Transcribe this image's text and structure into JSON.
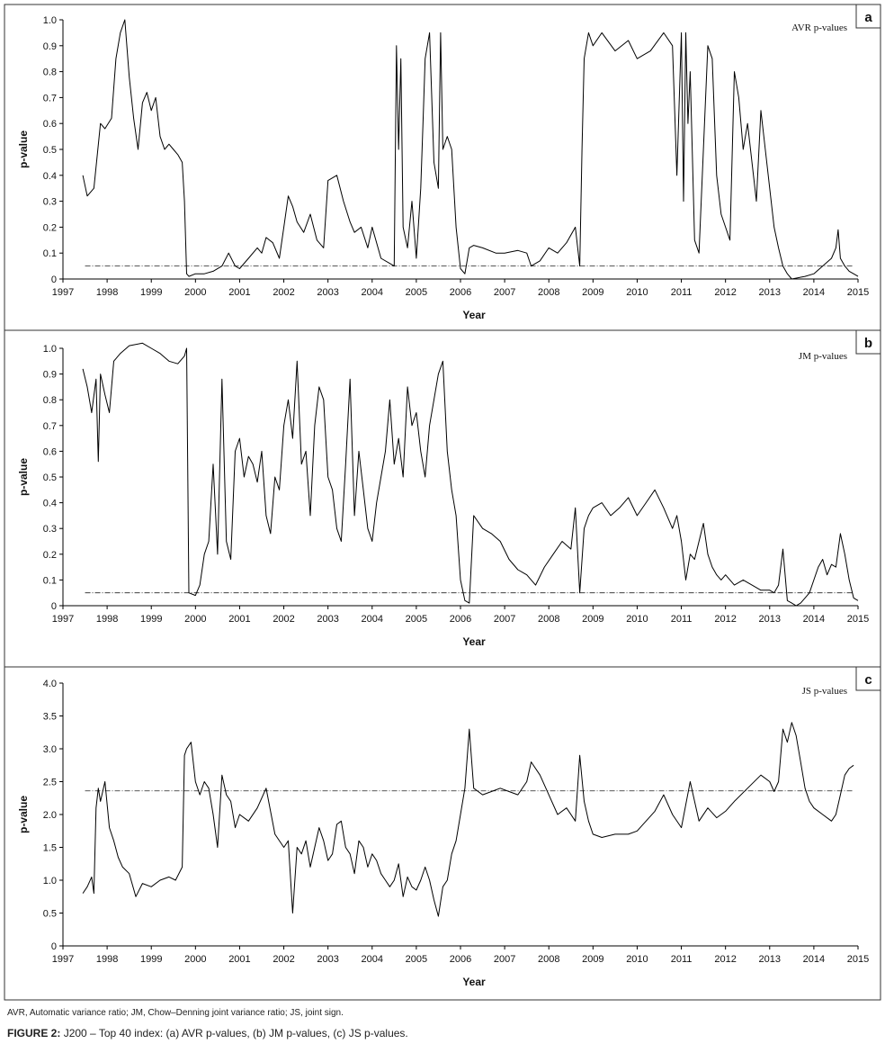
{
  "footnote": "AVR, Automatic variance ratio; JM, Chow–Denning joint variance ratio; JS, joint sign.",
  "caption": {
    "label": "FIGURE 2:",
    "text": "J200 – Top 40 index: (a) AVR p-values, (b) JM p-values, (c) JS p-values."
  },
  "chart_data": [
    {
      "type": "line",
      "panel_label": "a",
      "legend": "AVR p-values",
      "xlabel": "Year",
      "ylabel": "p-value",
      "xlim": [
        1997,
        2015
      ],
      "ylim": [
        0,
        1.0
      ],
      "xticks": [
        "1997",
        "1998",
        "1999",
        "2000",
        "2001",
        "2002",
        "2003",
        "2004",
        "2005",
        "2006",
        "2007",
        "2008",
        "2009",
        "2010",
        "2011",
        "2012",
        "2013",
        "2014",
        "2015"
      ],
      "yticks": [
        "0",
        "0.1",
        "0.2",
        "0.3",
        "0.4",
        "0.5",
        "0.6",
        "0.7",
        "0.8",
        "0.9",
        "1.0"
      ],
      "reference_line": 0.05,
      "series": [
        {
          "name": "AVR p-values",
          "x": [
            1997.45,
            1997.55,
            1997.7,
            1997.85,
            1997.95,
            1998.1,
            1998.2,
            1998.3,
            1998.4,
            1998.5,
            1998.6,
            1998.7,
            1998.8,
            1998.9,
            1999.0,
            1999.1,
            1999.2,
            1999.3,
            1999.4,
            1999.5,
            1999.6,
            1999.7,
            1999.75,
            1999.8,
            1999.85,
            2000.0,
            2000.2,
            2000.4,
            2000.6,
            2000.75,
            2000.9,
            2001.0,
            2001.2,
            2001.4,
            2001.5,
            2001.6,
            2001.75,
            2001.9,
            2002.0,
            2002.1,
            2002.2,
            2002.3,
            2002.45,
            2002.6,
            2002.75,
            2002.9,
            2003.0,
            2003.2,
            2003.35,
            2003.5,
            2003.6,
            2003.75,
            2003.9,
            2004.0,
            2004.2,
            2004.4,
            2004.5,
            2004.55,
            2004.6,
            2004.65,
            2004.7,
            2004.8,
            2004.9,
            2005.0,
            2005.1,
            2005.15,
            2005.2,
            2005.3,
            2005.4,
            2005.5,
            2005.55,
            2005.6,
            2005.7,
            2005.8,
            2005.9,
            2006.0,
            2006.1,
            2006.2,
            2006.3,
            2006.5,
            2006.8,
            2007.0,
            2007.3,
            2007.5,
            2007.6,
            2007.8,
            2008.0,
            2008.2,
            2008.4,
            2008.6,
            2008.7,
            2008.75,
            2008.8,
            2008.9,
            2009.0,
            2009.2,
            2009.5,
            2009.8,
            2010.0,
            2010.3,
            2010.6,
            2010.8,
            2010.9,
            2011.0,
            2011.05,
            2011.1,
            2011.15,
            2011.2,
            2011.3,
            2011.4,
            2011.5,
            2011.6,
            2011.7,
            2011.8,
            2011.9,
            2012.0,
            2012.1,
            2012.2,
            2012.3,
            2012.4,
            2012.5,
            2012.6,
            2012.7,
            2012.8,
            2012.9,
            2013.0,
            2013.1,
            2013.2,
            2013.3,
            2013.4,
            2013.5,
            2013.8,
            2014.0,
            2014.2,
            2014.4,
            2014.5,
            2014.55,
            2014.6,
            2014.7,
            2014.8,
            2014.9,
            2015.0
          ],
          "y": [
            0.4,
            0.32,
            0.35,
            0.6,
            0.58,
            0.62,
            0.85,
            0.95,
            1.0,
            0.78,
            0.62,
            0.5,
            0.68,
            0.72,
            0.65,
            0.7,
            0.55,
            0.5,
            0.52,
            0.5,
            0.48,
            0.45,
            0.3,
            0.02,
            0.01,
            0.02,
            0.02,
            0.03,
            0.05,
            0.1,
            0.05,
            0.04,
            0.08,
            0.12,
            0.1,
            0.16,
            0.14,
            0.08,
            0.2,
            0.32,
            0.28,
            0.22,
            0.18,
            0.25,
            0.15,
            0.12,
            0.38,
            0.4,
            0.3,
            0.22,
            0.18,
            0.2,
            0.12,
            0.2,
            0.08,
            0.06,
            0.05,
            0.9,
            0.5,
            0.85,
            0.2,
            0.12,
            0.3,
            0.08,
            0.35,
            0.6,
            0.85,
            0.95,
            0.45,
            0.35,
            0.95,
            0.5,
            0.55,
            0.5,
            0.2,
            0.04,
            0.02,
            0.12,
            0.13,
            0.12,
            0.1,
            0.1,
            0.11,
            0.1,
            0.05,
            0.07,
            0.12,
            0.1,
            0.14,
            0.2,
            0.05,
            0.5,
            0.85,
            0.95,
            0.9,
            0.95,
            0.88,
            0.92,
            0.85,
            0.88,
            0.95,
            0.9,
            0.4,
            0.95,
            0.3,
            0.95,
            0.6,
            0.8,
            0.15,
            0.1,
            0.5,
            0.9,
            0.85,
            0.4,
            0.25,
            0.2,
            0.15,
            0.8,
            0.7,
            0.5,
            0.6,
            0.45,
            0.3,
            0.65,
            0.5,
            0.35,
            0.2,
            0.12,
            0.05,
            0.02,
            0.0,
            0.01,
            0.02,
            0.05,
            0.08,
            0.12,
            0.19,
            0.08,
            0.05,
            0.03,
            0.02,
            0.01
          ]
        }
      ]
    },
    {
      "type": "line",
      "panel_label": "b",
      "legend": "JM p-values",
      "xlabel": "Year",
      "ylabel": "p-value",
      "xlim": [
        1997,
        2015
      ],
      "ylim": [
        0,
        1.0
      ],
      "xticks": [
        "1997",
        "1998",
        "1999",
        "2000",
        "2001",
        "2002",
        "2003",
        "2004",
        "2005",
        "2006",
        "2007",
        "2008",
        "2009",
        "2010",
        "2011",
        "2012",
        "2013",
        "2014",
        "2015"
      ],
      "yticks": [
        "0",
        "0.1",
        "0.2",
        "0.3",
        "0.4",
        "0.5",
        "0.6",
        "0.7",
        "0.8",
        "0.9",
        "1.0"
      ],
      "reference_line": 0.05,
      "series": [
        {
          "name": "JM p-values",
          "x": [
            1997.45,
            1997.55,
            1997.65,
            1997.75,
            1997.8,
            1997.85,
            1997.95,
            1998.05,
            1998.15,
            1998.3,
            1998.5,
            1998.8,
            1999.0,
            1999.2,
            1999.4,
            1999.6,
            1999.75,
            1999.8,
            1999.85,
            2000.0,
            2000.1,
            2000.2,
            2000.3,
            2000.4,
            2000.5,
            2000.6,
            2000.7,
            2000.8,
            2000.9,
            2001.0,
            2001.1,
            2001.2,
            2001.3,
            2001.4,
            2001.5,
            2001.6,
            2001.7,
            2001.8,
            2001.9,
            2002.0,
            2002.1,
            2002.2,
            2002.3,
            2002.4,
            2002.5,
            2002.6,
            2002.7,
            2002.8,
            2002.9,
            2003.0,
            2003.1,
            2003.2,
            2003.3,
            2003.4,
            2003.5,
            2003.6,
            2003.7,
            2003.8,
            2003.9,
            2004.0,
            2004.1,
            2004.2,
            2004.3,
            2004.4,
            2004.5,
            2004.6,
            2004.7,
            2004.8,
            2004.9,
            2005.0,
            2005.1,
            2005.2,
            2005.3,
            2005.4,
            2005.5,
            2005.6,
            2005.7,
            2005.8,
            2005.9,
            2006.0,
            2006.1,
            2006.2,
            2006.3,
            2006.5,
            2006.7,
            2006.9,
            2007.1,
            2007.3,
            2007.5,
            2007.7,
            2007.9,
            2008.1,
            2008.3,
            2008.5,
            2008.6,
            2008.7,
            2008.8,
            2008.9,
            2009.0,
            2009.2,
            2009.4,
            2009.6,
            2009.8,
            2010.0,
            2010.2,
            2010.4,
            2010.6,
            2010.8,
            2010.9,
            2011.0,
            2011.1,
            2011.2,
            2011.3,
            2011.4,
            2011.5,
            2011.6,
            2011.7,
            2011.8,
            2011.9,
            2012.0,
            2012.2,
            2012.4,
            2012.6,
            2012.8,
            2013.0,
            2013.1,
            2013.2,
            2013.3,
            2013.4,
            2013.5,
            2013.6,
            2013.7,
            2013.8,
            2013.9,
            2014.0,
            2014.1,
            2014.2,
            2014.3,
            2014.4,
            2014.5,
            2014.6,
            2014.7,
            2014.8,
            2014.9,
            2015.0
          ],
          "y": [
            0.92,
            0.85,
            0.75,
            0.88,
            0.56,
            0.9,
            0.82,
            0.75,
            0.95,
            0.98,
            1.01,
            1.02,
            1.0,
            0.98,
            0.95,
            0.94,
            0.97,
            1.0,
            0.05,
            0.04,
            0.08,
            0.2,
            0.25,
            0.55,
            0.2,
            0.88,
            0.25,
            0.18,
            0.6,
            0.65,
            0.5,
            0.58,
            0.55,
            0.48,
            0.6,
            0.35,
            0.28,
            0.5,
            0.45,
            0.7,
            0.8,
            0.65,
            0.95,
            0.55,
            0.6,
            0.35,
            0.7,
            0.85,
            0.8,
            0.5,
            0.45,
            0.3,
            0.25,
            0.55,
            0.88,
            0.35,
            0.6,
            0.45,
            0.3,
            0.25,
            0.4,
            0.5,
            0.6,
            0.8,
            0.55,
            0.65,
            0.5,
            0.85,
            0.7,
            0.75,
            0.6,
            0.5,
            0.7,
            0.8,
            0.9,
            0.95,
            0.6,
            0.45,
            0.35,
            0.1,
            0.02,
            0.01,
            0.35,
            0.3,
            0.28,
            0.25,
            0.18,
            0.14,
            0.12,
            0.08,
            0.15,
            0.2,
            0.25,
            0.22,
            0.38,
            0.05,
            0.3,
            0.35,
            0.38,
            0.4,
            0.35,
            0.38,
            0.42,
            0.35,
            0.4,
            0.45,
            0.38,
            0.3,
            0.35,
            0.25,
            0.1,
            0.2,
            0.18,
            0.25,
            0.32,
            0.2,
            0.15,
            0.12,
            0.1,
            0.12,
            0.08,
            0.1,
            0.08,
            0.06,
            0.06,
            0.05,
            0.08,
            0.22,
            0.02,
            0.01,
            0.0,
            0.01,
            0.03,
            0.05,
            0.1,
            0.15,
            0.18,
            0.12,
            0.16,
            0.15,
            0.28,
            0.2,
            0.1,
            0.03,
            0.02
          ]
        }
      ]
    },
    {
      "type": "line",
      "panel_label": "c",
      "legend": "JS p-values",
      "xlabel": "Year",
      "ylabel": "p-value",
      "xlim": [
        1997,
        2015
      ],
      "ylim": [
        0,
        4.0
      ],
      "xticks": [
        "1997",
        "1998",
        "1999",
        "2000",
        "2001",
        "2002",
        "2003",
        "2004",
        "2005",
        "2006",
        "2007",
        "2008",
        "2009",
        "2010",
        "2011",
        "2012",
        "2013",
        "2014",
        "2015"
      ],
      "yticks": [
        "0",
        "0.5",
        "1.0",
        "1.5",
        "2.0",
        "2.5",
        "3.0",
        "3.5",
        "4.0"
      ],
      "reference_line": 2.36,
      "series": [
        {
          "name": "JS p-values",
          "x": [
            1997.45,
            1997.55,
            1997.65,
            1997.7,
            1997.75,
            1997.8,
            1997.85,
            1997.95,
            1998.05,
            1998.15,
            1998.25,
            1998.35,
            1998.5,
            1998.65,
            1998.8,
            1999.0,
            1999.2,
            1999.4,
            1999.55,
            1999.7,
            1999.75,
            1999.8,
            1999.9,
            2000.0,
            2000.1,
            2000.2,
            2000.3,
            2000.4,
            2000.5,
            2000.6,
            2000.7,
            2000.8,
            2000.9,
            2001.0,
            2001.2,
            2001.4,
            2001.6,
            2001.8,
            2002.0,
            2002.1,
            2002.2,
            2002.3,
            2002.4,
            2002.5,
            2002.6,
            2002.7,
            2002.8,
            2002.9,
            2003.0,
            2003.1,
            2003.2,
            2003.3,
            2003.4,
            2003.5,
            2003.6,
            2003.7,
            2003.8,
            2003.9,
            2004.0,
            2004.1,
            2004.2,
            2004.3,
            2004.4,
            2004.5,
            2004.6,
            2004.7,
            2004.8,
            2004.9,
            2005.0,
            2005.1,
            2005.2,
            2005.3,
            2005.4,
            2005.5,
            2005.6,
            2005.7,
            2005.8,
            2005.9,
            2006.0,
            2006.1,
            2006.2,
            2006.3,
            2006.5,
            2006.7,
            2006.9,
            2007.1,
            2007.3,
            2007.5,
            2007.6,
            2007.8,
            2008.0,
            2008.2,
            2008.4,
            2008.6,
            2008.7,
            2008.8,
            2008.9,
            2009.0,
            2009.2,
            2009.5,
            2009.8,
            2010.0,
            2010.2,
            2010.4,
            2010.6,
            2010.8,
            2011.0,
            2011.2,
            2011.4,
            2011.6,
            2011.8,
            2012.0,
            2012.2,
            2012.5,
            2012.8,
            2013.0,
            2013.1,
            2013.2,
            2013.3,
            2013.4,
            2013.5,
            2013.6,
            2013.7,
            2013.8,
            2013.9,
            2014.0,
            2014.2,
            2014.4,
            2014.5,
            2014.6,
            2014.7,
            2014.8,
            2014.9
          ],
          "y": [
            0.8,
            0.9,
            1.05,
            0.8,
            2.1,
            2.4,
            2.2,
            2.5,
            1.8,
            1.6,
            1.35,
            1.2,
            1.1,
            0.75,
            0.95,
            0.9,
            1.0,
            1.05,
            1.0,
            1.2,
            2.9,
            3.0,
            3.1,
            2.5,
            2.3,
            2.5,
            2.4,
            2.0,
            1.5,
            2.6,
            2.3,
            2.2,
            1.8,
            2.0,
            1.9,
            2.1,
            2.4,
            1.7,
            1.5,
            1.6,
            0.5,
            1.5,
            1.4,
            1.6,
            1.2,
            1.5,
            1.8,
            1.6,
            1.3,
            1.4,
            1.85,
            1.9,
            1.5,
            1.4,
            1.1,
            1.6,
            1.5,
            1.2,
            1.4,
            1.3,
            1.1,
            1.0,
            0.9,
            1.0,
            1.25,
            0.75,
            1.05,
            0.9,
            0.85,
            1.0,
            1.2,
            1.0,
            0.7,
            0.45,
            0.9,
            1.0,
            1.4,
            1.6,
            2.0,
            2.4,
            3.3,
            2.4,
            2.3,
            2.35,
            2.4,
            2.35,
            2.3,
            2.5,
            2.8,
            2.6,
            2.3,
            2.0,
            2.1,
            1.9,
            2.9,
            2.2,
            1.9,
            1.7,
            1.65,
            1.7,
            1.7,
            1.75,
            1.9,
            2.05,
            2.3,
            2.0,
            1.8,
            2.5,
            1.9,
            2.1,
            1.95,
            2.05,
            2.2,
            2.4,
            2.6,
            2.5,
            2.35,
            2.5,
            3.3,
            3.1,
            3.4,
            3.2,
            2.8,
            2.4,
            2.2,
            2.1,
            2.0,
            1.9,
            2.0,
            2.3,
            2.6,
            2.7,
            2.75
          ]
        }
      ]
    }
  ]
}
